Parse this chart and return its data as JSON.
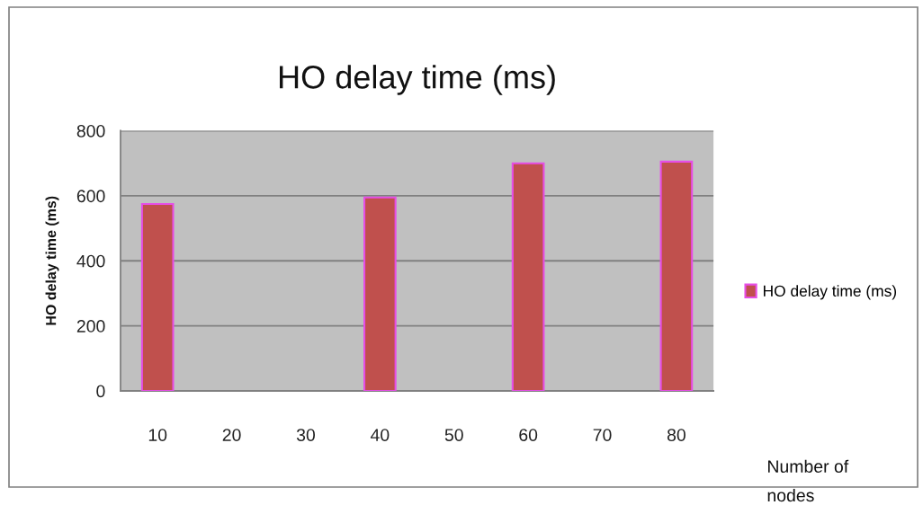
{
  "chart_data": {
    "type": "bar",
    "title": "HO delay time (ms)",
    "xlabel": "Number of\nnodes",
    "ylabel": "HO delay time (ms)",
    "categories": [
      "10",
      "20",
      "30",
      "40",
      "50",
      "60",
      "70",
      "80"
    ],
    "series": [
      {
        "name": "HO delay time (ms)",
        "color": "#c0504d",
        "values": [
          575,
          null,
          null,
          595,
          null,
          700,
          null,
          705
        ]
      }
    ],
    "ylim": [
      0,
      800
    ],
    "yticks": [
      0,
      200,
      400,
      600,
      800
    ],
    "grid": "y",
    "legend": "right"
  }
}
